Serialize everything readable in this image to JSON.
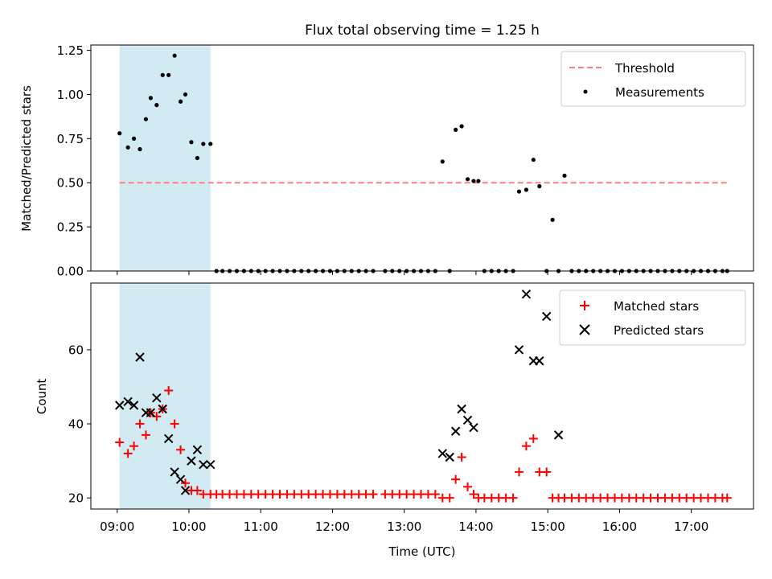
{
  "chart_data": [
    {
      "type": "scatter",
      "title": "Flux total observing time = 1.25 h",
      "xlabel": "",
      "ylabel": "Matched/Predicted stars",
      "xlim": [
        "08:38",
        "17:52"
      ],
      "ylim": [
        0,
        1.28
      ],
      "yticks": [
        0.0,
        0.25,
        0.5,
        0.75,
        1.0,
        1.25
      ],
      "yticklabels": [
        "0.00",
        "0.25",
        "0.50",
        "0.75",
        "1.00",
        "1.25"
      ],
      "legend_position": "top-right",
      "highlight_span": {
        "start": "09:02",
        "end": "10:18",
        "color": "#add8e6"
      },
      "threshold": {
        "name": "Threshold",
        "value": 0.5,
        "x_start": "09:02",
        "x_end": "17:30",
        "color": "#ff7f7f",
        "style": "dashed"
      },
      "series": [
        {
          "name": "Measurements",
          "color": "#000000",
          "marker": "dot",
          "points": [
            [
              "09:02",
              0.78
            ],
            [
              "09:09",
              0.7
            ],
            [
              "09:14",
              0.75
            ],
            [
              "09:19",
              0.69
            ],
            [
              "09:24",
              0.86
            ],
            [
              "09:28",
              0.98
            ],
            [
              "09:33",
              0.94
            ],
            [
              "09:38",
              1.11
            ],
            [
              "09:43",
              1.11
            ],
            [
              "09:48",
              1.22
            ],
            [
              "09:53",
              0.96
            ],
            [
              "09:57",
              1.0
            ],
            [
              "10:02",
              0.73
            ],
            [
              "10:07",
              0.64
            ],
            [
              "10:12",
              0.72
            ],
            [
              "10:18",
              0.72
            ],
            [
              "10:23",
              0.0
            ],
            [
              "10:28",
              0.0
            ],
            [
              "10:34",
              0.0
            ],
            [
              "10:40",
              0.0
            ],
            [
              "10:46",
              0.0
            ],
            [
              "10:52",
              0.0
            ],
            [
              "10:58",
              0.0
            ],
            [
              "11:04",
              0.0
            ],
            [
              "11:10",
              0.0
            ],
            [
              "11:16",
              0.0
            ],
            [
              "11:22",
              0.0
            ],
            [
              "11:28",
              0.0
            ],
            [
              "11:34",
              0.0
            ],
            [
              "11:40",
              0.0
            ],
            [
              "11:46",
              0.0
            ],
            [
              "11:52",
              0.0
            ],
            [
              "11:58",
              0.0
            ],
            [
              "12:04",
              0.0
            ],
            [
              "12:10",
              0.0
            ],
            [
              "12:16",
              0.0
            ],
            [
              "12:22",
              0.0
            ],
            [
              "12:28",
              0.0
            ],
            [
              "12:34",
              0.0
            ],
            [
              "12:44",
              0.0
            ],
            [
              "12:50",
              0.0
            ],
            [
              "12:56",
              0.0
            ],
            [
              "13:02",
              0.0
            ],
            [
              "13:08",
              0.0
            ],
            [
              "13:14",
              0.0
            ],
            [
              "13:20",
              0.0
            ],
            [
              "13:26",
              0.0
            ],
            [
              "13:32",
              0.62
            ],
            [
              "13:38",
              0.0
            ],
            [
              "13:43",
              0.8
            ],
            [
              "13:48",
              0.82
            ],
            [
              "13:53",
              0.52
            ],
            [
              "13:58",
              0.51
            ],
            [
              "14:02",
              0.51
            ],
            [
              "14:07",
              0.0
            ],
            [
              "14:13",
              0.0
            ],
            [
              "14:19",
              0.0
            ],
            [
              "14:25",
              0.0
            ],
            [
              "14:31",
              0.0
            ],
            [
              "14:36",
              0.45
            ],
            [
              "14:42",
              0.46
            ],
            [
              "14:48",
              0.63
            ],
            [
              "14:53",
              0.48
            ],
            [
              "14:59",
              0.0
            ],
            [
              "15:04",
              0.29
            ],
            [
              "15:09",
              0.0
            ],
            [
              "15:14",
              0.54
            ],
            [
              "15:20",
              0.0
            ],
            [
              "15:26",
              0.0
            ],
            [
              "15:32",
              0.0
            ],
            [
              "15:38",
              0.0
            ],
            [
              "15:44",
              0.0
            ],
            [
              "15:50",
              0.0
            ],
            [
              "15:56",
              0.0
            ],
            [
              "16:02",
              0.0
            ],
            [
              "16:08",
              0.0
            ],
            [
              "16:14",
              0.0
            ],
            [
              "16:20",
              0.0
            ],
            [
              "16:26",
              0.0
            ],
            [
              "16:32",
              0.0
            ],
            [
              "16:38",
              0.0
            ],
            [
              "16:44",
              0.0
            ],
            [
              "16:50",
              0.0
            ],
            [
              "16:56",
              0.0
            ],
            [
              "17:02",
              0.0
            ],
            [
              "17:08",
              0.0
            ],
            [
              "17:14",
              0.0
            ],
            [
              "17:20",
              0.0
            ],
            [
              "17:26",
              0.0
            ],
            [
              "17:30",
              0.0
            ]
          ]
        }
      ]
    },
    {
      "type": "scatter",
      "title": "",
      "xlabel": "Time (UTC)",
      "ylabel": "Count",
      "xlim": [
        "08:38",
        "17:52"
      ],
      "ylim": [
        17,
        78
      ],
      "yticks": [
        20,
        40,
        60
      ],
      "yticklabels": [
        "20",
        "40",
        "60"
      ],
      "xticks": [
        "09:00",
        "10:00",
        "11:00",
        "12:00",
        "13:00",
        "14:00",
        "15:00",
        "16:00",
        "17:00"
      ],
      "xticklabels": [
        "09:00",
        "10:00",
        "11:00",
        "12:00",
        "13:00",
        "14:00",
        "15:00",
        "16:00",
        "17:00"
      ],
      "legend_position": "top-right",
      "highlight_span": {
        "start": "09:02",
        "end": "10:18",
        "color": "#add8e6"
      },
      "series": [
        {
          "name": "Matched stars",
          "color": "#ff0000",
          "marker": "plus",
          "points": [
            [
              "09:02",
              35
            ],
            [
              "09:09",
              32
            ],
            [
              "09:14",
              34
            ],
            [
              "09:19",
              40
            ],
            [
              "09:24",
              37
            ],
            [
              "09:28",
              43
            ],
            [
              "09:33",
              42
            ],
            [
              "09:38",
              44
            ],
            [
              "09:43",
              49
            ],
            [
              "09:48",
              40
            ],
            [
              "09:53",
              33
            ],
            [
              "09:57",
              24
            ],
            [
              "10:02",
              22
            ],
            [
              "10:07",
              22
            ],
            [
              "10:12",
              21
            ],
            [
              "10:18",
              21
            ],
            [
              "10:23",
              21
            ],
            [
              "10:28",
              21
            ],
            [
              "10:34",
              21
            ],
            [
              "10:40",
              21
            ],
            [
              "10:46",
              21
            ],
            [
              "10:52",
              21
            ],
            [
              "10:58",
              21
            ],
            [
              "11:04",
              21
            ],
            [
              "11:10",
              21
            ],
            [
              "11:16",
              21
            ],
            [
              "11:22",
              21
            ],
            [
              "11:28",
              21
            ],
            [
              "11:34",
              21
            ],
            [
              "11:40",
              21
            ],
            [
              "11:46",
              21
            ],
            [
              "11:52",
              21
            ],
            [
              "11:58",
              21
            ],
            [
              "12:04",
              21
            ],
            [
              "12:10",
              21
            ],
            [
              "12:16",
              21
            ],
            [
              "12:22",
              21
            ],
            [
              "12:28",
              21
            ],
            [
              "12:34",
              21
            ],
            [
              "12:44",
              21
            ],
            [
              "12:50",
              21
            ],
            [
              "12:56",
              21
            ],
            [
              "13:02",
              21
            ],
            [
              "13:08",
              21
            ],
            [
              "13:14",
              21
            ],
            [
              "13:20",
              21
            ],
            [
              "13:26",
              21
            ],
            [
              "13:32",
              20
            ],
            [
              "13:38",
              20
            ],
            [
              "13:43",
              25
            ],
            [
              "13:48",
              31
            ],
            [
              "13:53",
              23
            ],
            [
              "13:58",
              21
            ],
            [
              "14:02",
              20
            ],
            [
              "14:07",
              20
            ],
            [
              "14:13",
              20
            ],
            [
              "14:19",
              20
            ],
            [
              "14:25",
              20
            ],
            [
              "14:31",
              20
            ],
            [
              "14:36",
              27
            ],
            [
              "14:42",
              34
            ],
            [
              "14:48",
              36
            ],
            [
              "14:53",
              27
            ],
            [
              "14:59",
              27
            ],
            [
              "15:04",
              20
            ],
            [
              "15:09",
              20
            ],
            [
              "15:14",
              20
            ],
            [
              "15:20",
              20
            ],
            [
              "15:26",
              20
            ],
            [
              "15:32",
              20
            ],
            [
              "15:38",
              20
            ],
            [
              "15:44",
              20
            ],
            [
              "15:50",
              20
            ],
            [
              "15:56",
              20
            ],
            [
              "16:02",
              20
            ],
            [
              "16:08",
              20
            ],
            [
              "16:14",
              20
            ],
            [
              "16:20",
              20
            ],
            [
              "16:26",
              20
            ],
            [
              "16:32",
              20
            ],
            [
              "16:38",
              20
            ],
            [
              "16:44",
              20
            ],
            [
              "16:50",
              20
            ],
            [
              "16:56",
              20
            ],
            [
              "17:02",
              20
            ],
            [
              "17:08",
              20
            ],
            [
              "17:14",
              20
            ],
            [
              "17:20",
              20
            ],
            [
              "17:26",
              20
            ],
            [
              "17:30",
              20
            ]
          ]
        },
        {
          "name": "Predicted stars",
          "color": "#000000",
          "marker": "x",
          "points": [
            [
              "09:02",
              45
            ],
            [
              "09:09",
              46
            ],
            [
              "09:14",
              45
            ],
            [
              "09:19",
              58
            ],
            [
              "09:24",
              43
            ],
            [
              "09:28",
              43
            ],
            [
              "09:33",
              47
            ],
            [
              "09:38",
              44
            ],
            [
              "09:43",
              36
            ],
            [
              "09:48",
              27
            ],
            [
              "09:53",
              25
            ],
            [
              "09:57",
              22
            ],
            [
              "10:02",
              30
            ],
            [
              "10:07",
              33
            ],
            [
              "10:12",
              29
            ],
            [
              "10:18",
              29
            ],
            [
              "13:32",
              32
            ],
            [
              "13:38",
              31
            ],
            [
              "13:43",
              38
            ],
            [
              "13:48",
              44
            ],
            [
              "13:53",
              41
            ],
            [
              "13:58",
              39
            ],
            [
              "14:36",
              60
            ],
            [
              "14:42",
              75
            ],
            [
              "14:48",
              57
            ],
            [
              "14:53",
              57
            ],
            [
              "14:59",
              69
            ],
            [
              "15:09",
              37
            ]
          ]
        }
      ]
    }
  ]
}
